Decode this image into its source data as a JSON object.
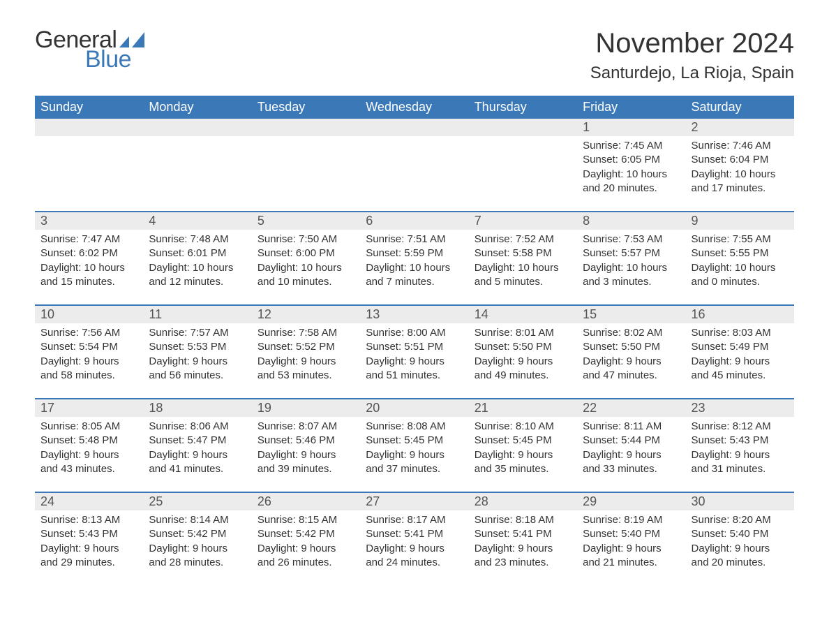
{
  "logo": {
    "text_general": "General",
    "text_blue": "Blue",
    "sail_color": "#3b78b8"
  },
  "title": "November 2024",
  "location": "Santurdejo, La Rioja, Spain",
  "colors": {
    "header_bg": "#3b78b8",
    "header_text": "#ffffff",
    "daynum_bg": "#ececec",
    "daynum_text": "#555555",
    "body_text": "#333333",
    "rule": "#3b78b8",
    "page_bg": "#ffffff"
  },
  "day_names": [
    "Sunday",
    "Monday",
    "Tuesday",
    "Wednesday",
    "Thursday",
    "Friday",
    "Saturday"
  ],
  "weeks": [
    [
      null,
      null,
      null,
      null,
      null,
      {
        "n": "1",
        "sunrise": "7:45 AM",
        "sunset": "6:05 PM",
        "daylight": "10 hours and 20 minutes."
      },
      {
        "n": "2",
        "sunrise": "7:46 AM",
        "sunset": "6:04 PM",
        "daylight": "10 hours and 17 minutes."
      }
    ],
    [
      {
        "n": "3",
        "sunrise": "7:47 AM",
        "sunset": "6:02 PM",
        "daylight": "10 hours and 15 minutes."
      },
      {
        "n": "4",
        "sunrise": "7:48 AM",
        "sunset": "6:01 PM",
        "daylight": "10 hours and 12 minutes."
      },
      {
        "n": "5",
        "sunrise": "7:50 AM",
        "sunset": "6:00 PM",
        "daylight": "10 hours and 10 minutes."
      },
      {
        "n": "6",
        "sunrise": "7:51 AM",
        "sunset": "5:59 PM",
        "daylight": "10 hours and 7 minutes."
      },
      {
        "n": "7",
        "sunrise": "7:52 AM",
        "sunset": "5:58 PM",
        "daylight": "10 hours and 5 minutes."
      },
      {
        "n": "8",
        "sunrise": "7:53 AM",
        "sunset": "5:57 PM",
        "daylight": "10 hours and 3 minutes."
      },
      {
        "n": "9",
        "sunrise": "7:55 AM",
        "sunset": "5:55 PM",
        "daylight": "10 hours and 0 minutes."
      }
    ],
    [
      {
        "n": "10",
        "sunrise": "7:56 AM",
        "sunset": "5:54 PM",
        "daylight": "9 hours and 58 minutes."
      },
      {
        "n": "11",
        "sunrise": "7:57 AM",
        "sunset": "5:53 PM",
        "daylight": "9 hours and 56 minutes."
      },
      {
        "n": "12",
        "sunrise": "7:58 AM",
        "sunset": "5:52 PM",
        "daylight": "9 hours and 53 minutes."
      },
      {
        "n": "13",
        "sunrise": "8:00 AM",
        "sunset": "5:51 PM",
        "daylight": "9 hours and 51 minutes."
      },
      {
        "n": "14",
        "sunrise": "8:01 AM",
        "sunset": "5:50 PM",
        "daylight": "9 hours and 49 minutes."
      },
      {
        "n": "15",
        "sunrise": "8:02 AM",
        "sunset": "5:50 PM",
        "daylight": "9 hours and 47 minutes."
      },
      {
        "n": "16",
        "sunrise": "8:03 AM",
        "sunset": "5:49 PM",
        "daylight": "9 hours and 45 minutes."
      }
    ],
    [
      {
        "n": "17",
        "sunrise": "8:05 AM",
        "sunset": "5:48 PM",
        "daylight": "9 hours and 43 minutes."
      },
      {
        "n": "18",
        "sunrise": "8:06 AM",
        "sunset": "5:47 PM",
        "daylight": "9 hours and 41 minutes."
      },
      {
        "n": "19",
        "sunrise": "8:07 AM",
        "sunset": "5:46 PM",
        "daylight": "9 hours and 39 minutes."
      },
      {
        "n": "20",
        "sunrise": "8:08 AM",
        "sunset": "5:45 PM",
        "daylight": "9 hours and 37 minutes."
      },
      {
        "n": "21",
        "sunrise": "8:10 AM",
        "sunset": "5:45 PM",
        "daylight": "9 hours and 35 minutes."
      },
      {
        "n": "22",
        "sunrise": "8:11 AM",
        "sunset": "5:44 PM",
        "daylight": "9 hours and 33 minutes."
      },
      {
        "n": "23",
        "sunrise": "8:12 AM",
        "sunset": "5:43 PM",
        "daylight": "9 hours and 31 minutes."
      }
    ],
    [
      {
        "n": "24",
        "sunrise": "8:13 AM",
        "sunset": "5:43 PM",
        "daylight": "9 hours and 29 minutes."
      },
      {
        "n": "25",
        "sunrise": "8:14 AM",
        "sunset": "5:42 PM",
        "daylight": "9 hours and 28 minutes."
      },
      {
        "n": "26",
        "sunrise": "8:15 AM",
        "sunset": "5:42 PM",
        "daylight": "9 hours and 26 minutes."
      },
      {
        "n": "27",
        "sunrise": "8:17 AM",
        "sunset": "5:41 PM",
        "daylight": "9 hours and 24 minutes."
      },
      {
        "n": "28",
        "sunrise": "8:18 AM",
        "sunset": "5:41 PM",
        "daylight": "9 hours and 23 minutes."
      },
      {
        "n": "29",
        "sunrise": "8:19 AM",
        "sunset": "5:40 PM",
        "daylight": "9 hours and 21 minutes."
      },
      {
        "n": "30",
        "sunrise": "8:20 AM",
        "sunset": "5:40 PM",
        "daylight": "9 hours and 20 minutes."
      }
    ]
  ],
  "labels": {
    "sunrise": "Sunrise: ",
    "sunset": "Sunset: ",
    "daylight": "Daylight: "
  }
}
